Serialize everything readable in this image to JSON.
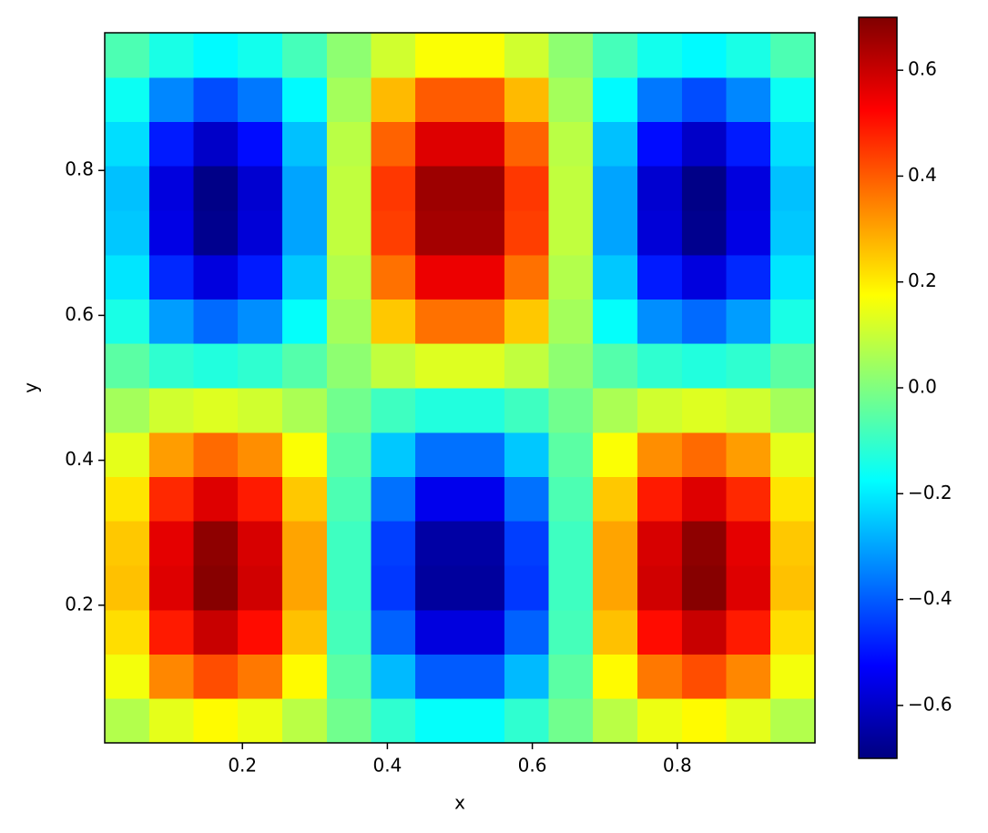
{
  "chart_data": {
    "type": "heatmap",
    "xlabel": "x",
    "ylabel": "y",
    "colormap": "jet",
    "x": [
      0.041,
      0.102,
      0.163,
      0.224,
      0.286,
      0.347,
      0.408,
      0.469,
      0.531,
      0.592,
      0.653,
      0.714,
      0.776,
      0.837,
      0.898,
      0.959
    ],
    "y": [
      0.041,
      0.102,
      0.163,
      0.224,
      0.286,
      0.347,
      0.408,
      0.469,
      0.531,
      0.592,
      0.653,
      0.714,
      0.776,
      0.837,
      0.898,
      0.959
    ],
    "z": [
      [
        0.07,
        0.14,
        0.18,
        0.15,
        0.08,
        -0.02,
        -0.11,
        -0.17,
        -0.17,
        -0.11,
        -0.02,
        0.08,
        0.15,
        0.18,
        0.14,
        0.07
      ],
      [
        0.16,
        0.34,
        0.42,
        0.36,
        0.18,
        -0.05,
        -0.27,
        -0.4,
        -0.4,
        -0.27,
        -0.05,
        0.18,
        0.36,
        0.42,
        0.34,
        0.16
      ],
      [
        0.22,
        0.49,
        0.6,
        0.51,
        0.26,
        -0.08,
        -0.39,
        -0.57,
        -0.57,
        -0.39,
        -0.08,
        0.26,
        0.51,
        0.6,
        0.49,
        0.22
      ],
      [
        0.26,
        0.57,
        0.69,
        0.59,
        0.3,
        -0.09,
        -0.45,
        -0.66,
        -0.66,
        -0.45,
        -0.09,
        0.3,
        0.59,
        0.69,
        0.57,
        0.26
      ],
      [
        0.25,
        0.56,
        0.68,
        0.58,
        0.3,
        -0.09,
        -0.44,
        -0.65,
        -0.65,
        -0.44,
        -0.09,
        0.3,
        0.58,
        0.68,
        0.56,
        0.25
      ],
      [
        0.21,
        0.47,
        0.57,
        0.49,
        0.25,
        -0.07,
        -0.37,
        -0.55,
        -0.55,
        -0.37,
        -0.07,
        0.25,
        0.49,
        0.57,
        0.47,
        0.21
      ],
      [
        0.14,
        0.31,
        0.38,
        0.33,
        0.17,
        -0.05,
        -0.25,
        -0.37,
        -0.37,
        -0.25,
        -0.05,
        0.17,
        0.33,
        0.38,
        0.31,
        0.14
      ],
      [
        0.05,
        0.11,
        0.13,
        0.11,
        0.06,
        -0.02,
        -0.09,
        -0.13,
        -0.13,
        -0.09,
        -0.02,
        0.06,
        0.11,
        0.13,
        0.11,
        0.05
      ],
      [
        -0.05,
        -0.11,
        -0.13,
        -0.11,
        -0.06,
        0.02,
        0.09,
        0.13,
        0.13,
        0.09,
        0.02,
        -0.06,
        -0.11,
        -0.13,
        -0.11,
        -0.05
      ],
      [
        -0.14,
        -0.31,
        -0.38,
        -0.33,
        -0.17,
        0.05,
        0.25,
        0.37,
        0.37,
        0.25,
        0.05,
        -0.17,
        -0.33,
        -0.38,
        -0.31,
        -0.14
      ],
      [
        -0.21,
        -0.47,
        -0.57,
        -0.49,
        -0.25,
        0.07,
        0.37,
        0.55,
        0.55,
        0.37,
        0.07,
        -0.25,
        -0.49,
        -0.57,
        -0.47,
        -0.21
      ],
      [
        -0.25,
        -0.56,
        -0.68,
        -0.58,
        -0.3,
        0.09,
        0.44,
        0.65,
        0.65,
        0.44,
        0.09,
        -0.3,
        -0.58,
        -0.68,
        -0.56,
        -0.25
      ],
      [
        -0.26,
        -0.57,
        -0.69,
        -0.59,
        -0.3,
        0.09,
        0.45,
        0.66,
        0.66,
        0.45,
        0.09,
        -0.3,
        -0.59,
        -0.69,
        -0.57,
        -0.26
      ],
      [
        -0.22,
        -0.49,
        -0.6,
        -0.51,
        -0.26,
        0.08,
        0.39,
        0.57,
        0.57,
        0.39,
        0.08,
        -0.26,
        -0.51,
        -0.6,
        -0.49,
        -0.22
      ],
      [
        -0.16,
        -0.34,
        -0.42,
        -0.36,
        -0.18,
        0.05,
        0.27,
        0.4,
        0.4,
        0.27,
        0.05,
        -0.18,
        -0.36,
        -0.42,
        -0.34,
        -0.16
      ],
      [
        -0.07,
        -0.14,
        -0.18,
        -0.15,
        -0.08,
        0.02,
        0.11,
        0.17,
        0.17,
        0.11,
        0.02,
        -0.08,
        -0.15,
        -0.18,
        -0.14,
        -0.07
      ]
    ],
    "xlim": [
      0.01,
      0.99
    ],
    "ylim": [
      0.01,
      0.99
    ],
    "xticks": [
      0.2,
      0.4,
      0.6,
      0.8
    ],
    "yticks": [
      0.2,
      0.4,
      0.6,
      0.8
    ],
    "clim": [
      -0.7,
      0.7
    ],
    "cticks": [
      {
        "value": -0.6,
        "label": "−0.6"
      },
      {
        "value": -0.4,
        "label": "−0.4"
      },
      {
        "value": -0.2,
        "label": "−0.2"
      },
      {
        "value": 0,
        "label": "0.0"
      },
      0.2,
      0.4,
      0.6
    ]
  }
}
